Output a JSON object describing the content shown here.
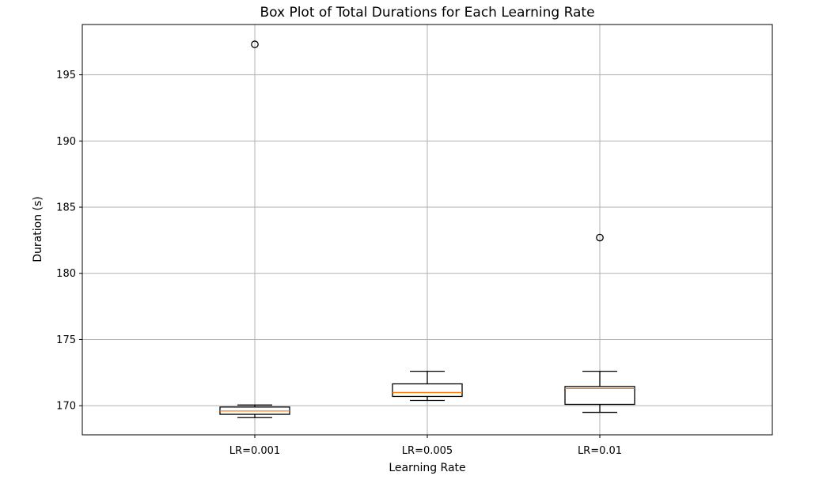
{
  "chart_data": {
    "type": "box",
    "title": "Box Plot of Total Durations for Each Learning Rate",
    "xlabel": "Learning Rate",
    "ylabel": "Duration (s)",
    "ylim": [
      167.8,
      198.8
    ],
    "yticks": [
      170,
      175,
      180,
      185,
      190,
      195
    ],
    "grid": true,
    "categories": [
      "LR=0.001",
      "LR=0.005",
      "LR=0.01"
    ],
    "boxes": [
      {
        "whisker_low": 169.1,
        "q1": 169.35,
        "median": 169.6,
        "q3": 169.9,
        "whisker_high": 170.05,
        "outliers": [
          197.3
        ]
      },
      {
        "whisker_low": 170.4,
        "q1": 170.7,
        "median": 171.0,
        "q3": 171.65,
        "whisker_high": 172.6,
        "outliers": []
      },
      {
        "whisker_low": 169.5,
        "q1": 170.1,
        "median": 171.3,
        "q3": 171.45,
        "whisker_high": 172.6,
        "outliers": [
          182.7
        ]
      }
    ],
    "colors": {
      "box": "#000000",
      "median": "#ff7f0e",
      "grid": "#b0b0b0"
    }
  }
}
